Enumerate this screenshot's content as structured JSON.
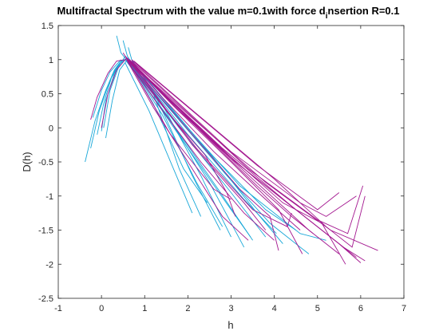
{
  "chart_data": {
    "type": "line",
    "title": "Multifractal Spectrum with the value m=0.1with force d",
    "title_subscript": "i",
    "title_suffix": "nsertion R=0.1",
    "xlabel": "h",
    "ylabel": "D(h)",
    "xlim": [
      -1,
      7
    ],
    "ylim": [
      -2.5,
      1.5
    ],
    "xticks": [
      "-1",
      "0",
      "1",
      "2",
      "3",
      "4",
      "5",
      "6",
      "7"
    ],
    "yticks": [
      "-2.5",
      "-2",
      "-1.5",
      "-1",
      "-0.5",
      "0",
      "0.5",
      "1",
      "1.5"
    ],
    "grid": false,
    "legend": "none",
    "colors": {
      "series_a": "#17a7d8",
      "series_b": "#a3168f",
      "axis": "#262626"
    },
    "series": [
      {
        "color": "series_a",
        "points": [
          [
            -0.38,
            -0.5
          ],
          [
            -0.15,
            0.1
          ],
          [
            0.1,
            0.55
          ],
          [
            0.3,
            0.85
          ],
          [
            0.45,
            0.98
          ],
          [
            0.58,
            1.0
          ]
        ]
      },
      {
        "color": "series_a",
        "points": [
          [
            -0.25,
            -0.3
          ],
          [
            -0.05,
            0.25
          ],
          [
            0.2,
            0.7
          ],
          [
            0.4,
            0.92
          ],
          [
            0.55,
            1.0
          ]
        ]
      },
      {
        "color": "series_a",
        "points": [
          [
            -0.1,
            -0.1
          ],
          [
            0.05,
            0.35
          ],
          [
            0.25,
            0.78
          ],
          [
            0.45,
            0.98
          ],
          [
            0.62,
            1.02
          ]
        ]
      },
      {
        "color": "series_a",
        "points": [
          [
            0.0,
            -0.05
          ],
          [
            0.1,
            0.4
          ],
          [
            0.3,
            0.8
          ],
          [
            0.5,
            1.0
          ]
        ]
      },
      {
        "color": "series_a",
        "points": [
          [
            0.05,
            0.0
          ],
          [
            0.2,
            0.55
          ],
          [
            0.4,
            0.9
          ],
          [
            0.55,
            1.05
          ]
        ]
      },
      {
        "color": "series_a",
        "points": [
          [
            -0.2,
            0.15
          ],
          [
            0.0,
            0.55
          ],
          [
            0.2,
            0.82
          ],
          [
            0.45,
            1.0
          ]
        ]
      },
      {
        "color": "series_a",
        "points": [
          [
            0.1,
            -0.15
          ],
          [
            0.25,
            0.4
          ],
          [
            0.42,
            0.85
          ],
          [
            0.6,
            1.0
          ]
        ]
      },
      {
        "color": "series_a",
        "points": [
          [
            0.35,
            1.35
          ],
          [
            0.45,
            1.1
          ],
          [
            0.6,
            0.98
          ],
          [
            1.2,
            0.5
          ],
          [
            1.8,
            -0.6
          ],
          [
            2.3,
            -1.3
          ]
        ]
      },
      {
        "color": "series_a",
        "points": [
          [
            0.5,
            1.28
          ],
          [
            0.6,
            1.05
          ],
          [
            1.3,
            0.4
          ],
          [
            2.1,
            -0.7
          ],
          [
            2.75,
            -1.5
          ]
        ]
      },
      {
        "color": "series_a",
        "points": [
          [
            0.62,
            1.18
          ],
          [
            0.7,
            1.0
          ],
          [
            1.4,
            0.35
          ],
          [
            2.3,
            -0.7
          ],
          [
            3.0,
            -1.6
          ]
        ]
      },
      {
        "color": "series_a",
        "points": [
          [
            0.55,
            1.0
          ],
          [
            1.5,
            0.2
          ],
          [
            2.5,
            -0.8
          ],
          [
            3.3,
            -1.75
          ]
        ]
      },
      {
        "color": "series_a",
        "points": [
          [
            0.6,
            0.98
          ],
          [
            1.6,
            0.1
          ],
          [
            2.7,
            -0.9
          ],
          [
            3.5,
            -1.65
          ]
        ]
      },
      {
        "color": "series_a",
        "points": [
          [
            0.6,
            1.0
          ],
          [
            1.8,
            0.0
          ],
          [
            3.0,
            -0.95
          ],
          [
            3.8,
            -1.6
          ]
        ]
      },
      {
        "color": "series_a",
        "points": [
          [
            0.62,
            1.0
          ],
          [
            2.0,
            -0.1
          ],
          [
            3.3,
            -1.05
          ],
          [
            4.05,
            -1.55
          ]
        ]
      },
      {
        "color": "series_a",
        "points": [
          [
            0.6,
            1.0
          ],
          [
            1.4,
            0.2
          ],
          [
            2.2,
            -0.8
          ],
          [
            2.8,
            -1.45
          ]
        ]
      },
      {
        "color": "series_a",
        "points": [
          [
            0.58,
            1.02
          ],
          [
            1.2,
            0.35
          ],
          [
            1.9,
            -0.6
          ],
          [
            2.45,
            -1.1
          ]
        ]
      },
      {
        "color": "series_a",
        "points": [
          [
            0.55,
            0.95
          ],
          [
            1.1,
            0.25
          ],
          [
            1.7,
            -0.65
          ],
          [
            2.1,
            -1.25
          ]
        ]
      },
      {
        "color": "series_a",
        "points": [
          [
            0.65,
            1.0
          ],
          [
            2.4,
            -0.3
          ],
          [
            3.8,
            -1.2
          ],
          [
            4.5,
            -1.5
          ]
        ]
      },
      {
        "color": "series_a",
        "points": [
          [
            0.7,
            0.98
          ],
          [
            2.6,
            -0.45
          ],
          [
            3.6,
            -1.25
          ],
          [
            4.2,
            -1.7
          ]
        ]
      },
      {
        "color": "series_a",
        "points": [
          [
            0.6,
            1.0
          ],
          [
            2.9,
            -0.7
          ],
          [
            3.9,
            -1.4
          ],
          [
            4.8,
            -1.85
          ]
        ]
      },
      {
        "color": "series_a",
        "points": [
          [
            0.65,
            0.95
          ],
          [
            3.2,
            -0.85
          ],
          [
            4.6,
            -1.55
          ],
          [
            5.2,
            -1.65
          ]
        ]
      },
      {
        "color": "series_a",
        "points": [
          [
            0.6,
            1.0
          ],
          [
            2.0,
            -0.3
          ],
          [
            3.0,
            -1.2
          ],
          [
            3.45,
            -1.6
          ]
        ]
      },
      {
        "color": "series_b",
        "points": [
          [
            -0.25,
            0.12
          ],
          [
            -0.1,
            0.45
          ],
          [
            0.15,
            0.8
          ],
          [
            0.35,
            0.98
          ],
          [
            0.55,
            1.0
          ]
        ]
      },
      {
        "color": "series_b",
        "points": [
          [
            0.0,
            0.0
          ],
          [
            0.15,
            0.5
          ],
          [
            0.35,
            0.85
          ],
          [
            0.58,
            1.02
          ]
        ]
      },
      {
        "color": "series_b",
        "points": [
          [
            0.5,
            1.1
          ],
          [
            0.6,
            1.0
          ],
          [
            1.5,
            0.45
          ],
          [
            3.0,
            -0.45
          ],
          [
            4.5,
            -1.2
          ],
          [
            5.6,
            -1.75
          ],
          [
            6.1,
            -1.95
          ]
        ]
      },
      {
        "color": "series_b",
        "points": [
          [
            0.55,
            1.05
          ],
          [
            1.6,
            0.4
          ],
          [
            3.2,
            -0.55
          ],
          [
            4.8,
            -1.35
          ],
          [
            5.9,
            -1.9
          ]
        ]
      },
      {
        "color": "series_b",
        "points": [
          [
            0.6,
            1.0
          ],
          [
            2.0,
            0.2
          ],
          [
            3.8,
            -0.8
          ],
          [
            5.3,
            -1.5
          ],
          [
            6.4,
            -1.8
          ]
        ]
      },
      {
        "color": "series_b",
        "points": [
          [
            0.6,
            1.02
          ],
          [
            1.8,
            0.25
          ],
          [
            3.5,
            -0.75
          ],
          [
            4.8,
            -1.5
          ],
          [
            5.5,
            -1.85
          ]
        ]
      },
      {
        "color": "series_b",
        "points": [
          [
            0.62,
            1.0
          ],
          [
            1.4,
            0.45
          ],
          [
            2.6,
            -0.35
          ],
          [
            3.8,
            -1.05
          ],
          [
            4.6,
            -1.5
          ]
        ]
      },
      {
        "color": "series_b",
        "points": [
          [
            0.6,
            0.98
          ],
          [
            1.3,
            0.35
          ],
          [
            2.3,
            -0.5
          ],
          [
            3.3,
            -1.25
          ],
          [
            4.0,
            -1.65
          ]
        ]
      },
      {
        "color": "series_b",
        "points": [
          [
            0.58,
            1.0
          ],
          [
            1.2,
            0.3
          ],
          [
            2.0,
            -0.5
          ],
          [
            2.8,
            -1.3
          ],
          [
            3.4,
            -1.65
          ]
        ]
      },
      {
        "color": "series_b",
        "points": [
          [
            0.65,
            1.0
          ],
          [
            2.3,
            -0.05
          ],
          [
            3.6,
            -0.85
          ],
          [
            4.4,
            -1.3
          ],
          [
            4.9,
            -1.55
          ]
        ]
      },
      {
        "color": "series_b",
        "points": [
          [
            0.62,
            1.0
          ],
          [
            1.7,
            0.3
          ],
          [
            3.0,
            -0.5
          ],
          [
            4.1,
            -1.2
          ],
          [
            4.65,
            -1.85
          ]
        ]
      },
      {
        "color": "series_b",
        "points": [
          [
            0.6,
            1.0
          ],
          [
            2.5,
            -0.15
          ],
          [
            4.2,
            -1.1
          ],
          [
            5.1,
            -1.4
          ],
          [
            5.65,
            -2.0
          ]
        ]
      },
      {
        "color": "series_b",
        "points": [
          [
            0.6,
            1.0
          ],
          [
            2.8,
            -0.3
          ],
          [
            4.5,
            -1.2
          ],
          [
            5.5,
            -1.7
          ],
          [
            6.0,
            -1.98
          ]
        ]
      },
      {
        "color": "series_b",
        "points": [
          [
            0.62,
            0.95
          ],
          [
            1.5,
            0.25
          ],
          [
            2.4,
            -0.4
          ],
          [
            2.9,
            -0.95
          ],
          [
            3.1,
            -1.3
          ]
        ]
      },
      {
        "color": "series_b",
        "points": [
          [
            0.6,
            1.0
          ],
          [
            1.9,
            0.05
          ],
          [
            3.2,
            -0.9
          ],
          [
            3.9,
            -1.3
          ],
          [
            4.1,
            -1.8
          ]
        ]
      },
      {
        "color": "series_b",
        "points": [
          [
            0.7,
            1.0
          ],
          [
            3.0,
            -0.35
          ],
          [
            4.6,
            -1.1
          ],
          [
            5.2,
            -1.3
          ],
          [
            5.9,
            -1.0
          ]
        ]
      },
      {
        "color": "series_b",
        "points": [
          [
            0.7,
            0.98
          ],
          [
            3.4,
            -0.6
          ],
          [
            5.0,
            -1.35
          ],
          [
            5.7,
            -1.55
          ],
          [
            6.05,
            -0.85
          ]
        ]
      },
      {
        "color": "series_b",
        "points": [
          [
            0.65,
            1.0
          ],
          [
            2.1,
            -0.25
          ],
          [
            3.3,
            -1.1
          ],
          [
            3.8,
            -1.5
          ]
        ]
      },
      {
        "color": "series_b",
        "points": [
          [
            0.6,
            1.0
          ],
          [
            1.6,
            -0.1
          ],
          [
            2.6,
            -0.9
          ],
          [
            3.0,
            -1.05
          ]
        ]
      },
      {
        "color": "series_b",
        "points": [
          [
            0.7,
            1.0
          ],
          [
            3.6,
            -0.55
          ],
          [
            5.0,
            -1.2
          ],
          [
            5.5,
            -0.95
          ]
        ]
      },
      {
        "color": "series_b",
        "points": [
          [
            0.6,
            1.0
          ],
          [
            2.2,
            -0.3
          ],
          [
            3.5,
            -1.2
          ],
          [
            4.3,
            -1.45
          ],
          [
            4.4,
            -1.25
          ]
        ]
      },
      {
        "color": "series_b",
        "points": [
          [
            0.75,
            0.98
          ],
          [
            4.0,
            -0.75
          ],
          [
            5.2,
            -1.45
          ],
          [
            5.8,
            -1.75
          ],
          [
            6.1,
            -1.0
          ]
        ]
      }
    ]
  }
}
